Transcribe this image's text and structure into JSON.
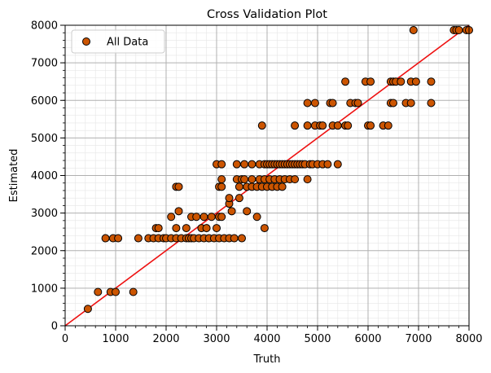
{
  "chart_data": {
    "type": "scatter",
    "title": "Cross Validation Plot",
    "xlabel": "Truth",
    "ylabel": "Estimated",
    "xlim": [
      0,
      8000
    ],
    "ylim": [
      0,
      8000
    ],
    "xticks": [
      0,
      1000,
      2000,
      3000,
      4000,
      5000,
      6000,
      7000,
      8000
    ],
    "yticks": [
      0,
      1000,
      2000,
      3000,
      4000,
      5000,
      6000,
      7000,
      8000
    ],
    "grid": true,
    "minor_grid": true,
    "legend_position": "top-left",
    "reference_line": {
      "from": [
        0,
        0
      ],
      "to": [
        8000,
        8000
      ],
      "color": "#ee1111"
    },
    "marker_color": "#cc5500",
    "marker_edge": "#000000",
    "series": [
      {
        "name": "All Data",
        "points": [
          [
            450,
            450
          ],
          [
            650,
            900
          ],
          [
            900,
            900
          ],
          [
            1000,
            900
          ],
          [
            1350,
            900
          ],
          [
            800,
            2330
          ],
          [
            950,
            2330
          ],
          [
            1050,
            2330
          ],
          [
            1450,
            2330
          ],
          [
            1650,
            2330
          ],
          [
            1750,
            2330
          ],
          [
            1850,
            2330
          ],
          [
            1950,
            2330
          ],
          [
            2000,
            2330
          ],
          [
            2100,
            2330
          ],
          [
            2200,
            2330
          ],
          [
            2300,
            2330
          ],
          [
            2400,
            2330
          ],
          [
            2450,
            2330
          ],
          [
            2500,
            2330
          ],
          [
            2550,
            2330
          ],
          [
            2650,
            2330
          ],
          [
            2750,
            2330
          ],
          [
            2850,
            2330
          ],
          [
            2950,
            2330
          ],
          [
            3050,
            2330
          ],
          [
            3150,
            2330
          ],
          [
            3250,
            2330
          ],
          [
            3350,
            2330
          ],
          [
            3500,
            2330
          ],
          [
            1800,
            2600
          ],
          [
            1850,
            2600
          ],
          [
            2200,
            2600
          ],
          [
            2400,
            2600
          ],
          [
            2700,
            2600
          ],
          [
            2800,
            2600
          ],
          [
            3000,
            2600
          ],
          [
            3950,
            2600
          ],
          [
            2100,
            2900
          ],
          [
            2500,
            2900
          ],
          [
            2600,
            2900
          ],
          [
            2750,
            2900
          ],
          [
            2900,
            2900
          ],
          [
            3050,
            2900
          ],
          [
            3100,
            2900
          ],
          [
            3800,
            2900
          ],
          [
            2250,
            3050
          ],
          [
            3300,
            3050
          ],
          [
            3600,
            3050
          ],
          [
            3250,
            3250
          ],
          [
            3250,
            3400
          ],
          [
            3450,
            3400
          ],
          [
            2200,
            3700
          ],
          [
            2250,
            3700
          ],
          [
            3050,
            3700
          ],
          [
            3100,
            3700
          ],
          [
            3450,
            3700
          ],
          [
            3600,
            3700
          ],
          [
            3700,
            3700
          ],
          [
            3800,
            3700
          ],
          [
            3900,
            3700
          ],
          [
            4000,
            3700
          ],
          [
            4100,
            3700
          ],
          [
            4200,
            3700
          ],
          [
            4300,
            3700
          ],
          [
            3100,
            3900
          ],
          [
            3400,
            3900
          ],
          [
            3500,
            3900
          ],
          [
            3550,
            3900
          ],
          [
            3700,
            3900
          ],
          [
            3850,
            3900
          ],
          [
            3950,
            3900
          ],
          [
            4050,
            3900
          ],
          [
            4150,
            3900
          ],
          [
            4250,
            3900
          ],
          [
            4350,
            3900
          ],
          [
            4450,
            3900
          ],
          [
            4550,
            3900
          ],
          [
            4800,
            3900
          ],
          [
            3000,
            4300
          ],
          [
            3100,
            4300
          ],
          [
            3400,
            4300
          ],
          [
            3550,
            4300
          ],
          [
            3700,
            4300
          ],
          [
            3850,
            4300
          ],
          [
            3950,
            4300
          ],
          [
            4000,
            4300
          ],
          [
            4050,
            4300
          ],
          [
            4100,
            4300
          ],
          [
            4150,
            4300
          ],
          [
            4200,
            4300
          ],
          [
            4250,
            4300
          ],
          [
            4300,
            4300
          ],
          [
            4350,
            4300
          ],
          [
            4400,
            4300
          ],
          [
            4450,
            4300
          ],
          [
            4500,
            4300
          ],
          [
            4550,
            4300
          ],
          [
            4600,
            4300
          ],
          [
            4650,
            4300
          ],
          [
            4700,
            4300
          ],
          [
            4750,
            4300
          ],
          [
            4850,
            4300
          ],
          [
            4900,
            4300
          ],
          [
            5000,
            4300
          ],
          [
            5100,
            4300
          ],
          [
            5200,
            4300
          ],
          [
            5400,
            4300
          ],
          [
            3900,
            5330
          ],
          [
            4550,
            5330
          ],
          [
            4800,
            5330
          ],
          [
            4950,
            5330
          ],
          [
            5050,
            5330
          ],
          [
            5100,
            5330
          ],
          [
            5300,
            5330
          ],
          [
            5400,
            5330
          ],
          [
            5550,
            5330
          ],
          [
            5600,
            5330
          ],
          [
            6000,
            5330
          ],
          [
            6050,
            5330
          ],
          [
            6300,
            5330
          ],
          [
            6400,
            5330
          ],
          [
            4800,
            5930
          ],
          [
            4950,
            5930
          ],
          [
            5250,
            5930
          ],
          [
            5300,
            5930
          ],
          [
            5650,
            5930
          ],
          [
            5750,
            5930
          ],
          [
            5800,
            5930
          ],
          [
            6450,
            5930
          ],
          [
            6500,
            5930
          ],
          [
            6750,
            5930
          ],
          [
            6850,
            5930
          ],
          [
            7250,
            5930
          ],
          [
            5550,
            6500
          ],
          [
            5950,
            6500
          ],
          [
            6050,
            6500
          ],
          [
            6450,
            6500
          ],
          [
            6500,
            6500
          ],
          [
            6550,
            6500
          ],
          [
            6650,
            6500
          ],
          [
            6850,
            6500
          ],
          [
            6950,
            6500
          ],
          [
            7250,
            6500
          ],
          [
            6900,
            7870
          ],
          [
            7700,
            7870
          ],
          [
            7750,
            7870
          ],
          [
            7800,
            7870
          ],
          [
            7950,
            7870
          ],
          [
            8000,
            7870
          ]
        ]
      }
    ]
  }
}
